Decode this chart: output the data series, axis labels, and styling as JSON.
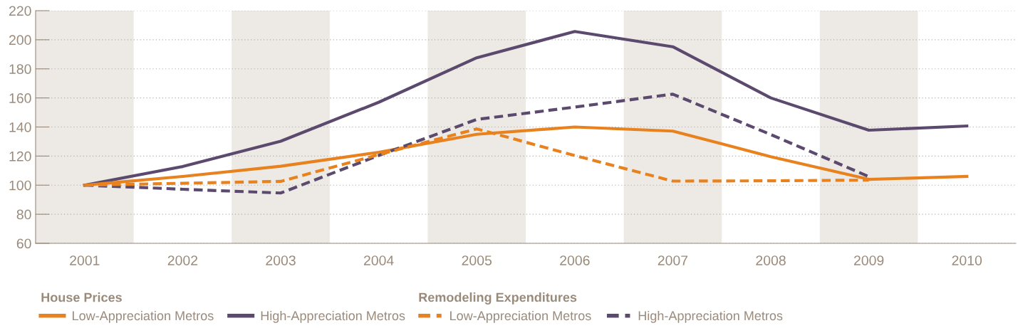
{
  "chart_data": {
    "type": "line",
    "x": [
      2001,
      2002,
      2003,
      2004,
      2005,
      2006,
      2007,
      2008,
      2009,
      2010
    ],
    "series": [
      {
        "name": "Low-Appreciation Metros",
        "color": "#e8821e",
        "line_style": "solid",
        "values": [
          100,
          106,
          113,
          122.6,
          135,
          140,
          137.2,
          119.6,
          104,
          106
        ]
      },
      {
        "name": "High-Appreciation Metros",
        "color": "#5b4a6e",
        "line_style": "solid",
        "values": [
          100,
          112.8,
          130.2,
          157,
          187.6,
          205.7,
          195.2,
          160,
          137.8,
          140.7
        ]
      },
      {
        "name": "Low-Appreciation Metros",
        "color": "#e8821e",
        "line_style": "dashed",
        "values": [
          100,
          101.3,
          102.6,
          121,
          138.7,
          120.4,
          102.8,
          103,
          103.5,
          null
        ]
      },
      {
        "name": "High-Appreciation Metros",
        "color": "#5b4a6e",
        "line_style": "dashed",
        "values": [
          100,
          97.2,
          94.6,
          120.4,
          145.2,
          153.7,
          162.6,
          134.8,
          105.9,
          null
        ]
      }
    ],
    "xlim": [
      2000.5,
      2010.5
    ],
    "xticks": [
      2001,
      2002,
      2003,
      2004,
      2005,
      2006,
      2007,
      2008,
      2009,
      2010
    ],
    "ylim": [
      60,
      220
    ],
    "yticks": [
      60,
      80,
      100,
      120,
      140,
      160,
      180,
      200,
      220
    ],
    "grid": "y",
    "legend": "bottom left",
    "marker": "none",
    "annotations": [
      "House Prices",
      "Remodeling Expenditures"
    ],
    "bands": [
      {
        "axis": "x",
        "from": 2000.5,
        "to": 2001.5,
        "color": "#ede9e4"
      },
      {
        "axis": "x",
        "from": 2002.5,
        "to": 2003.5,
        "color": "#ede9e4"
      },
      {
        "axis": "x",
        "from": 2004.5,
        "to": 2005.5,
        "color": "#ede9e4"
      },
      {
        "axis": "x",
        "from": 2006.5,
        "to": 2007.5,
        "color": "#ede9e4"
      },
      {
        "axis": "x",
        "from": 2008.5,
        "to": 2009.5,
        "color": "#ede9e4"
      }
    ]
  }
}
